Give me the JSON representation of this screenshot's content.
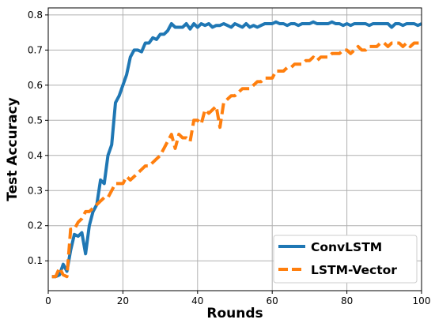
{
  "chart_data": {
    "type": "line",
    "xlabel": "Rounds",
    "ylabel": "Test Accuracy",
    "xlim": [
      0,
      100
    ],
    "ylim": [
      0.015,
      0.82
    ],
    "x_ticks": [
      0,
      20,
      40,
      60,
      80,
      100
    ],
    "y_ticks": [
      0.1,
      0.2,
      0.3,
      0.4,
      0.5,
      0.6,
      0.7,
      0.8
    ],
    "x_tick_labels": [
      "0",
      "20",
      "40",
      "60",
      "80",
      "100"
    ],
    "y_tick_labels": [
      "0.1",
      "0.2",
      "0.3",
      "0.4",
      "0.5",
      "0.6",
      "0.7",
      "0.8"
    ],
    "grid": true,
    "legend_position": "lower-right",
    "series": [
      {
        "name": "ConvLSTM",
        "color": "#1f77b4",
        "style": "solid",
        "x": [
          1,
          2,
          3,
          4,
          5,
          6,
          7,
          8,
          9,
          10,
          11,
          12,
          13,
          14,
          15,
          16,
          17,
          18,
          19,
          20,
          21,
          22,
          23,
          24,
          25,
          26,
          27,
          28,
          29,
          30,
          31,
          32,
          33,
          34,
          35,
          36,
          37,
          38,
          39,
          40,
          41,
          42,
          43,
          44,
          45,
          46,
          47,
          48,
          49,
          50,
          51,
          52,
          53,
          54,
          55,
          56,
          57,
          58,
          59,
          60,
          61,
          62,
          63,
          64,
          65,
          66,
          67,
          68,
          69,
          70,
          71,
          72,
          73,
          74,
          75,
          76,
          77,
          78,
          79,
          80,
          81,
          82,
          83,
          84,
          85,
          86,
          87,
          88,
          89,
          90,
          91,
          92,
          93,
          94,
          95,
          96,
          97,
          98,
          99,
          100
        ],
        "values": [
          0.055,
          0.055,
          0.06,
          0.09,
          0.07,
          0.13,
          0.175,
          0.17,
          0.18,
          0.12,
          0.2,
          0.24,
          0.26,
          0.33,
          0.32,
          0.4,
          0.43,
          0.55,
          0.57,
          0.6,
          0.63,
          0.68,
          0.7,
          0.7,
          0.695,
          0.72,
          0.72,
          0.735,
          0.73,
          0.745,
          0.745,
          0.755,
          0.775,
          0.765,
          0.765,
          0.765,
          0.775,
          0.76,
          0.775,
          0.765,
          0.775,
          0.77,
          0.775,
          0.765,
          0.77,
          0.77,
          0.775,
          0.77,
          0.765,
          0.775,
          0.77,
          0.765,
          0.775,
          0.765,
          0.77,
          0.765,
          0.77,
          0.775,
          0.775,
          0.775,
          0.78,
          0.775,
          0.775,
          0.77,
          0.775,
          0.775,
          0.77,
          0.775,
          0.775,
          0.775,
          0.78,
          0.775,
          0.775,
          0.775,
          0.775,
          0.78,
          0.775,
          0.775,
          0.77,
          0.775,
          0.77,
          0.775,
          0.775,
          0.775,
          0.775,
          0.77,
          0.775,
          0.775,
          0.775,
          0.775,
          0.775,
          0.765,
          0.775,
          0.775,
          0.77,
          0.775,
          0.775,
          0.775,
          0.77,
          0.775
        ]
      },
      {
        "name": "LSTM-Vector",
        "color": "#ff7f0e",
        "style": "dashed",
        "x": [
          1,
          2,
          3,
          4,
          5,
          6,
          7,
          8,
          9,
          10,
          11,
          12,
          13,
          14,
          15,
          16,
          17,
          18,
          19,
          20,
          21,
          22,
          23,
          24,
          25,
          26,
          27,
          28,
          29,
          30,
          31,
          32,
          33,
          34,
          35,
          36,
          37,
          38,
          39,
          40,
          41,
          42,
          43,
          44,
          45,
          46,
          47,
          48,
          49,
          50,
          51,
          52,
          53,
          54,
          55,
          56,
          57,
          58,
          59,
          60,
          61,
          62,
          63,
          64,
          65,
          66,
          67,
          68,
          69,
          70,
          71,
          72,
          73,
          74,
          75,
          76,
          77,
          78,
          79,
          80,
          81,
          82,
          83,
          84,
          85,
          86,
          87,
          88,
          89,
          90,
          91,
          92,
          93,
          94,
          95,
          96,
          97,
          98,
          99,
          100
        ],
        "values": [
          0.055,
          0.055,
          0.08,
          0.06,
          0.055,
          0.19,
          0.19,
          0.21,
          0.22,
          0.24,
          0.24,
          0.25,
          0.26,
          0.27,
          0.28,
          0.28,
          0.3,
          0.32,
          0.32,
          0.32,
          0.34,
          0.33,
          0.34,
          0.35,
          0.36,
          0.37,
          0.37,
          0.38,
          0.39,
          0.4,
          0.42,
          0.44,
          0.46,
          0.42,
          0.46,
          0.45,
          0.45,
          0.44,
          0.5,
          0.5,
          0.49,
          0.53,
          0.52,
          0.53,
          0.54,
          0.48,
          0.55,
          0.56,
          0.57,
          0.57,
          0.58,
          0.59,
          0.59,
          0.59,
          0.6,
          0.61,
          0.61,
          0.62,
          0.62,
          0.62,
          0.64,
          0.64,
          0.64,
          0.65,
          0.65,
          0.66,
          0.66,
          0.66,
          0.67,
          0.67,
          0.68,
          0.67,
          0.68,
          0.68,
          0.68,
          0.69,
          0.69,
          0.69,
          0.7,
          0.7,
          0.69,
          0.7,
          0.71,
          0.7,
          0.7,
          0.71,
          0.71,
          0.71,
          0.72,
          0.72,
          0.71,
          0.72,
          0.72,
          0.72,
          0.71,
          0.72,
          0.71,
          0.72,
          0.72,
          0.72
        ]
      }
    ]
  }
}
